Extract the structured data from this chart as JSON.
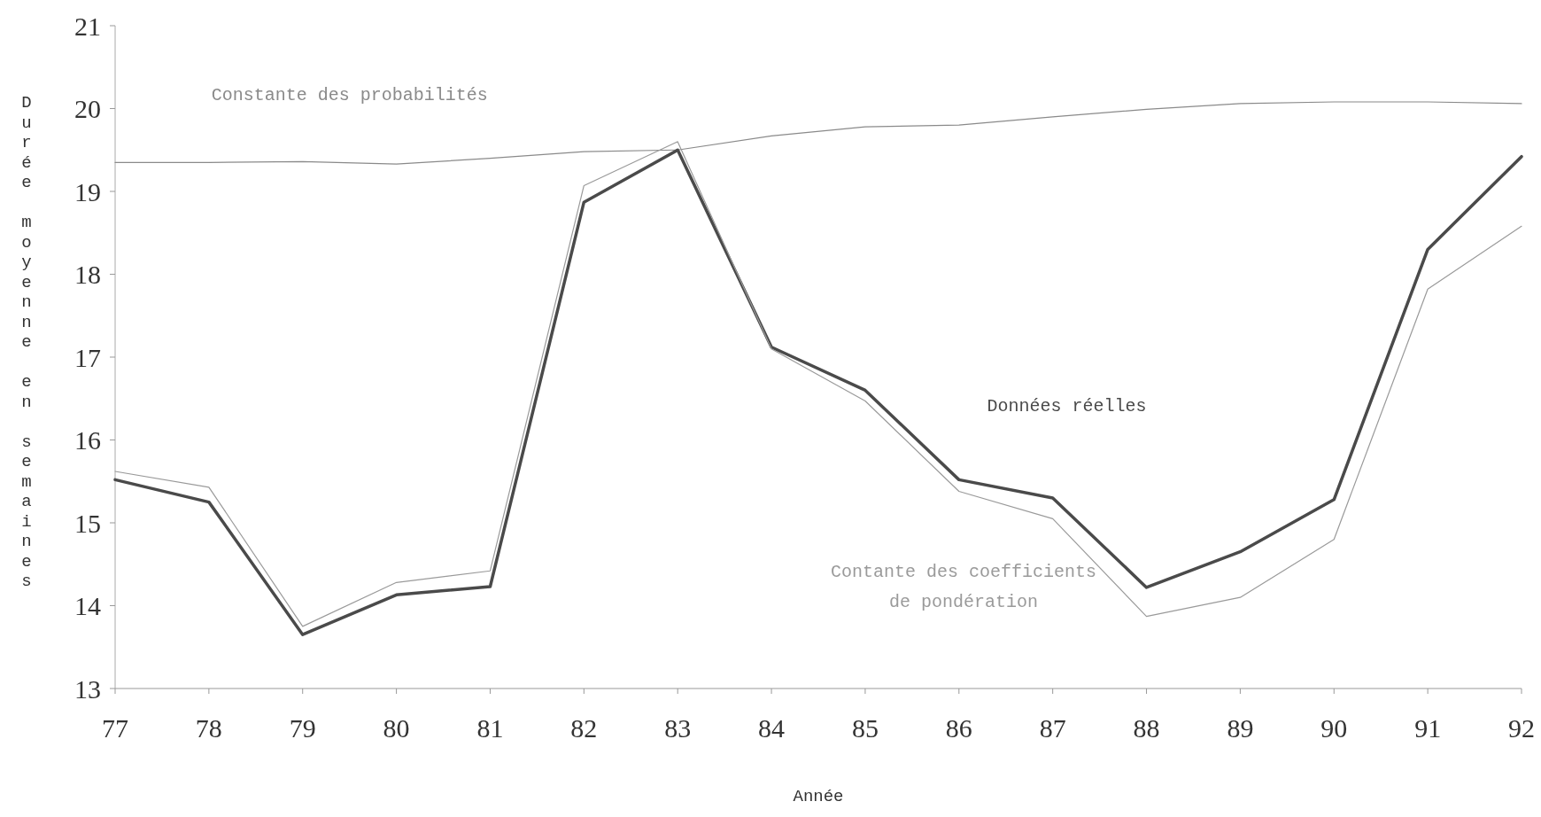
{
  "chart_data": {
    "type": "line",
    "xlabel": "Année",
    "ylabel": "Durée moyenne en semaines",
    "x": [
      77,
      78,
      79,
      80,
      81,
      82,
      83,
      84,
      85,
      86,
      87,
      88,
      89,
      90,
      91,
      92
    ],
    "xlim": [
      77,
      92
    ],
    "xticks": [
      77,
      78,
      79,
      80,
      81,
      82,
      83,
      84,
      85,
      86,
      87,
      88,
      89,
      90,
      91,
      92
    ],
    "ylim": [
      13,
      21
    ],
    "yticks": [
      13,
      14,
      15,
      16,
      17,
      18,
      19,
      20,
      21
    ],
    "grid": false,
    "marker": "none",
    "line_style": "solid",
    "series": [
      {
        "name": "Constante des probabilités",
        "color": "#8a8a8a",
        "values": [
          19.35,
          19.35,
          19.36,
          19.33,
          19.4,
          19.48,
          19.5,
          19.67,
          19.78,
          19.8,
          19.9,
          19.99,
          20.06,
          20.08,
          20.08,
          20.06
        ]
      },
      {
        "name": "Données réelles",
        "color": "#4a4a4a",
        "values": [
          15.52,
          15.25,
          13.65,
          14.13,
          14.23,
          18.87,
          19.5,
          17.12,
          16.6,
          15.52,
          15.3,
          14.22,
          14.65,
          15.28,
          18.3,
          19.42
        ]
      },
      {
        "name": "Contante des coefficients de pondération",
        "color": "#9a9a9a",
        "values": [
          15.62,
          15.43,
          13.75,
          14.28,
          14.42,
          19.07,
          19.6,
          17.1,
          16.47,
          15.38,
          15.05,
          13.87,
          14.1,
          14.8,
          17.82,
          18.58
        ]
      }
    ]
  }
}
